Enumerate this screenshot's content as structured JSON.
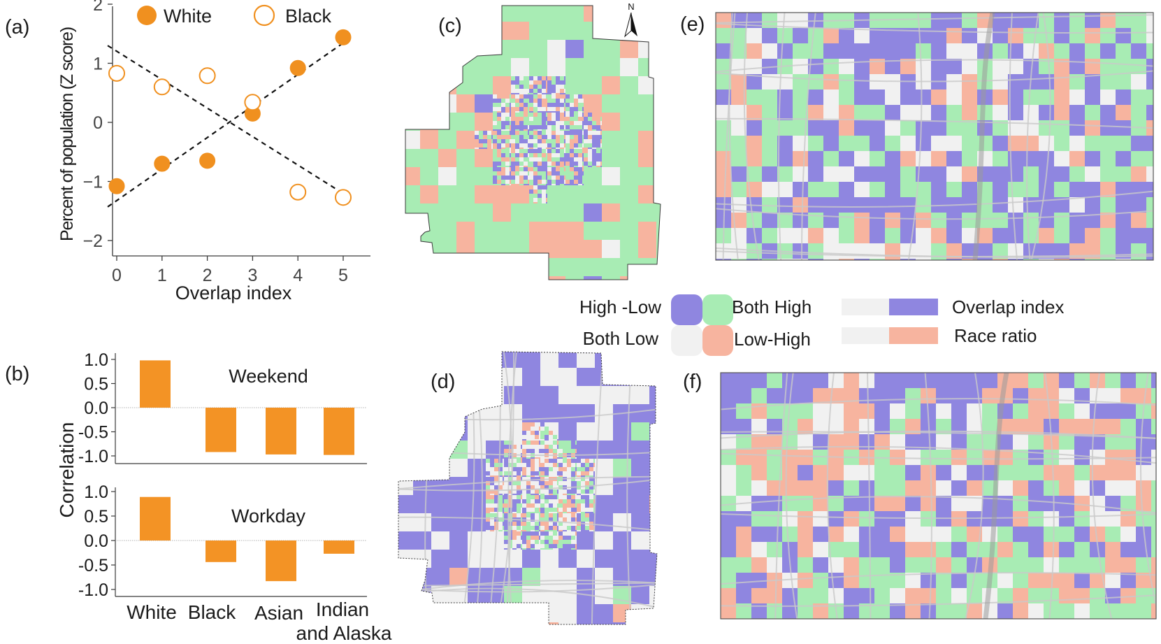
{
  "colors": {
    "white_group": "#f0901f",
    "black_group": "#f0901f",
    "bar": "#f39325",
    "high_low": "#8f86e0",
    "both_high": "#a8ecb4",
    "both_low": "#f1f1f1",
    "low_high": "#f7b49f",
    "road": "#c9c9c9"
  },
  "panel_labels": {
    "a": "(a)",
    "b": "(b)",
    "c": "(c)",
    "d": "(d)",
    "e": "(e)",
    "f": "(f)"
  },
  "chart_data": [
    {
      "id": "a",
      "type": "scatter",
      "xlabel": "Overlap index",
      "ylabel": "Percent of population (Z score)",
      "xlim": [
        -0.2,
        5.2
      ],
      "ylim": [
        -2,
        2
      ],
      "xticks": [
        "0",
        "1",
        "2",
        "3",
        "4",
        "5"
      ],
      "yticks": [
        "2",
        "1",
        "0",
        "−1",
        "−2"
      ],
      "yticks_values": [
        2,
        1,
        0,
        -1,
        -2
      ],
      "legend": [
        "White",
        "Black"
      ],
      "series": [
        {
          "name": "White",
          "marker": "filled",
          "x": [
            0,
            1,
            2,
            3,
            4,
            5
          ],
          "y": [
            -1.08,
            -0.7,
            -0.65,
            0.15,
            0.92,
            1.44
          ]
        },
        {
          "name": "Black",
          "marker": "open",
          "x": [
            0,
            1,
            2,
            3,
            4,
            5
          ],
          "y": [
            0.83,
            0.6,
            0.79,
            0.34,
            -1.18,
            -1.27
          ]
        }
      ],
      "trendlines": [
        {
          "name": "White fit",
          "x": [
            -0.2,
            5.2
          ],
          "y": [
            -1.43,
            1.45
          ]
        },
        {
          "name": "Black fit",
          "x": [
            -0.2,
            5.2
          ],
          "y": [
            1.3,
            -1.3
          ]
        }
      ]
    },
    {
      "id": "b",
      "type": "bar",
      "ylabel": "Correlation",
      "categories": [
        "White",
        "Black",
        "Asian",
        "Indian",
        "and Alaska"
      ],
      "category_keys": [
        "White",
        "Black",
        "Asian",
        "Indian and Alaska"
      ],
      "yticks": [
        "1.0",
        "0.5",
        "0.0",
        "-0.5",
        "-1.0"
      ],
      "yticks_values": [
        1.0,
        0.5,
        0.0,
        -0.5,
        -1.0
      ],
      "ylim": [
        -1.15,
        1.05
      ],
      "panels": [
        {
          "title": "Weekend",
          "values": [
            0.98,
            -0.92,
            -0.97,
            -0.98
          ]
        },
        {
          "title": "Workday",
          "values": [
            0.89,
            -0.44,
            -0.83,
            -0.27
          ]
        }
      ]
    }
  ],
  "maps": {
    "north_label": "N",
    "legend": {
      "high_low": "High -Low",
      "both_high": "Both High",
      "both_low": "Both Low",
      "low_high": "Low-High",
      "overlap_index": "Overlap index",
      "race_ratio": "Race ratio"
    }
  }
}
